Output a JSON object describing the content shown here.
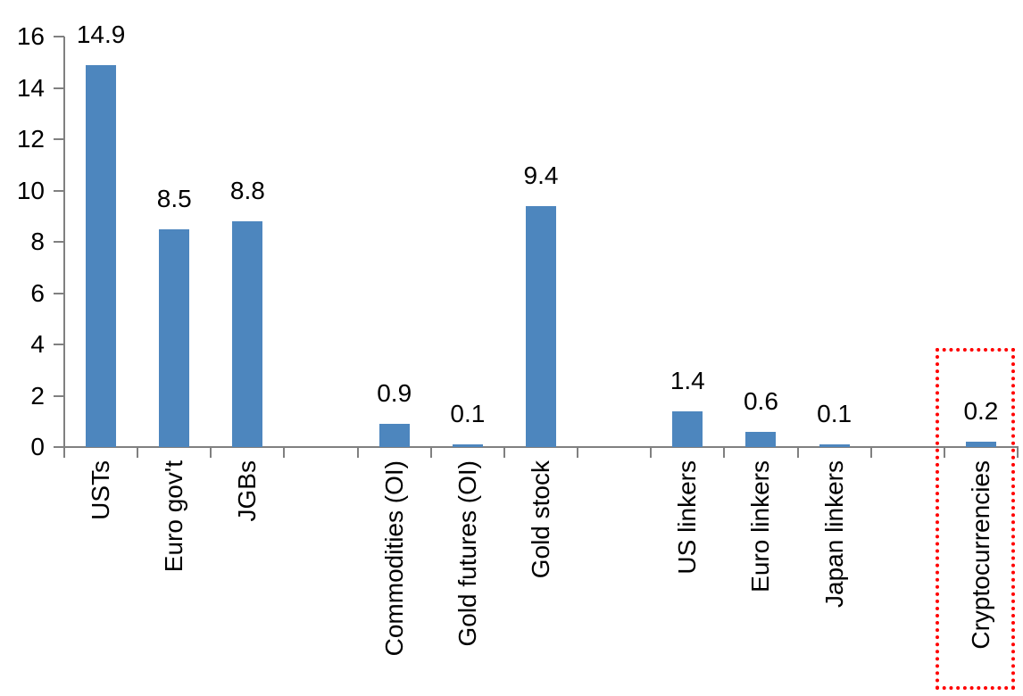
{
  "chart_data": {
    "type": "bar",
    "categories": [
      "USTs",
      "Euro gov't",
      "JGBs",
      "Commodities (OI)",
      "Gold futures (OI)",
      "Gold stock",
      "US linkers",
      "Euro linkers",
      "Japan linkers",
      "Cryptocurrencies"
    ],
    "values": [
      14.9,
      8.5,
      8.8,
      0.9,
      0.1,
      9.4,
      1.4,
      0.6,
      0.1,
      0.2
    ],
    "value_labels": [
      "14.9",
      "8.5",
      "8.8",
      "0.9",
      "0.1",
      "9.4",
      "1.4",
      "0.6",
      "0.1",
      "0.2"
    ],
    "slots": [
      0,
      1,
      2,
      4,
      5,
      6,
      8,
      9,
      10,
      12
    ],
    "num_slots": 13,
    "title": "",
    "xlabel": "",
    "ylabel": "",
    "ylim": [
      0,
      16
    ],
    "yticks": [
      "0",
      "2",
      "4",
      "6",
      "8",
      "10",
      "12",
      "14",
      "16"
    ],
    "grid": "off",
    "legend": "none",
    "bar_color": "#4d86be",
    "axis_color": "#808080",
    "text_color": "#000000",
    "highlight": {
      "target": "Cryptocurrencies",
      "target_slot": 12,
      "style": "dotted",
      "color": "#ff0000"
    }
  }
}
